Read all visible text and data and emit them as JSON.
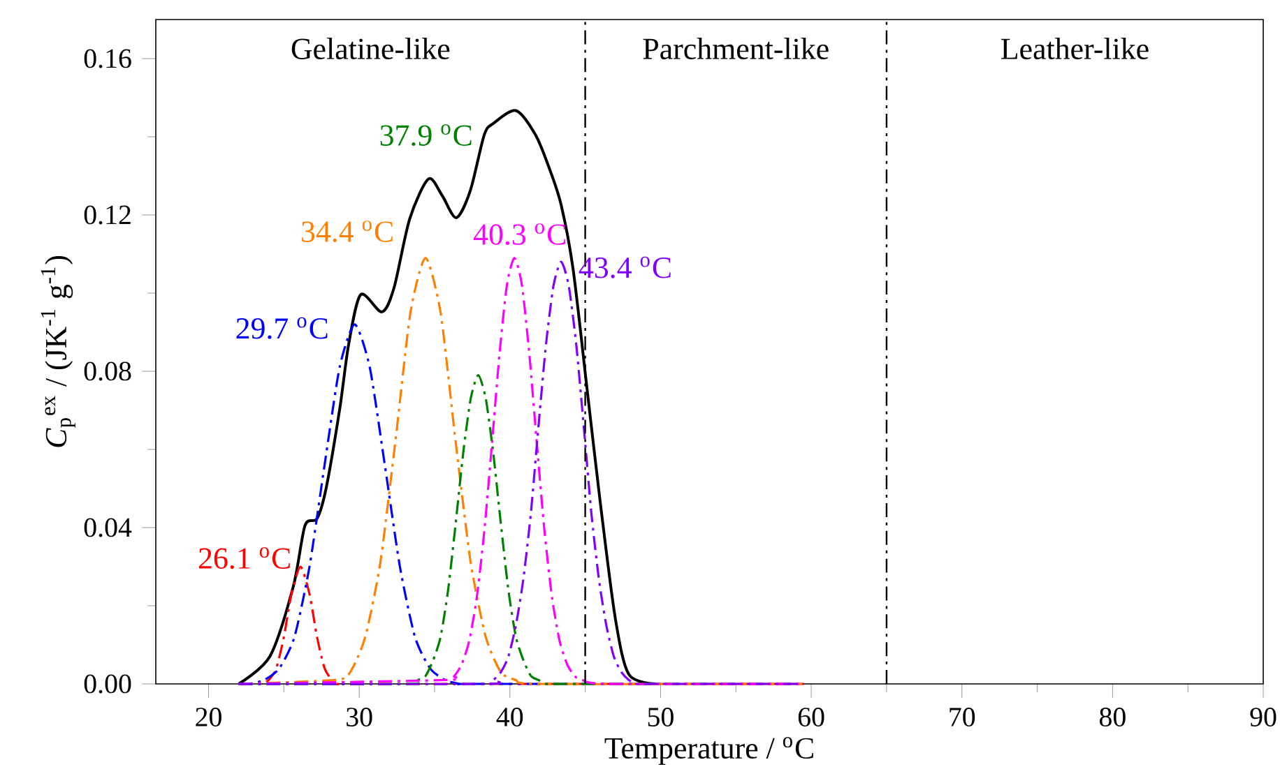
{
  "chart_data": {
    "type": "line",
    "xlabel": "Temperature / $^{o}$C",
    "ylabel": "*C*$_{p}$$^{ex}$ / (JK$^{-1}$ g$^{-1}$)",
    "xlim": [
      16.5,
      90
    ],
    "ylim": [
      0,
      0.17
    ],
    "xticks": [
      20,
      {
        "value": 25,
        "label": null
      },
      30,
      {
        "value": 35,
        "label": null
      },
      40,
      {
        "value": 45,
        "label": null
      },
      50,
      {
        "value": 55,
        "label": null
      },
      60,
      {
        "value": 65,
        "label": null
      },
      70,
      {
        "value": 75,
        "label": null
      },
      80,
      {
        "value": 85,
        "label": null
      },
      90
    ],
    "yticks": [
      {
        "value": 0,
        "label": "0.00"
      },
      {
        "value": 0.02,
        "label": null
      },
      {
        "value": 0.04,
        "label": "0.04"
      },
      {
        "value": 0.06,
        "label": null
      },
      {
        "value": 0.08,
        "label": "0.08"
      },
      {
        "value": 0.1,
        "label": null
      },
      {
        "value": 0.12,
        "label": "0.12"
      },
      {
        "value": 0.14,
        "label": null
      },
      {
        "value": 0.16,
        "label": "0.16"
      }
    ],
    "grid": false,
    "marker": "none",
    "series": [
      {
        "color": "#000000",
        "line_style": "solid",
        "x": [
          22,
          24.08,
          25.63,
          26.4,
          27.2,
          27.8,
          28.7,
          29.3,
          30.1,
          31.5,
          32.3,
          33.35,
          34.6,
          35.5,
          36.44,
          37.37,
          38.3,
          38.9,
          40.4,
          41.7,
          42.6,
          43.4,
          44.2,
          45.1,
          46.0,
          47.0,
          47.9,
          49.7
        ],
        "values": [
          0,
          0.0071,
          0.025,
          0.0405,
          0.0423,
          0.05,
          0.0702,
          0.0869,
          0.0996,
          0.0952,
          0.1012,
          0.119,
          0.1292,
          0.125,
          0.1193,
          0.1262,
          0.1405,
          0.1434,
          0.1467,
          0.1405,
          0.1321,
          0.1226,
          0.106,
          0.0762,
          0.0464,
          0.0167,
          0.0024,
          0
        ]
      },
      {
        "color": "#ff0000",
        "line_style": "dashdot",
        "x": [
          22,
          23.5,
          24,
          24.5,
          25,
          25.5,
          26.1,
          26.7,
          27.2,
          27.7,
          28.2,
          28.7,
          30,
          59.5
        ],
        "values": [
          0,
          0,
          0.001,
          0.004,
          0.012,
          0.023,
          0.03,
          0.023,
          0.012,
          0.004,
          0.001,
          0,
          0,
          0
        ]
      },
      {
        "color": "#0000ff",
        "line_style": "dashdot",
        "x": [
          22,
          22.7,
          23.7,
          24.7,
          25.7,
          26.7,
          27.7,
          28.7,
          29.7,
          30.7,
          31.7,
          32.7,
          33.7,
          34.7,
          35.7,
          36.7,
          38,
          59.5
        ],
        "values": [
          0,
          0,
          0.001,
          0.004,
          0.012,
          0.03,
          0.056,
          0.081,
          0.092,
          0.081,
          0.056,
          0.03,
          0.012,
          0.004,
          0.001,
          0,
          0,
          0
        ]
      },
      {
        "color": "#ff8000",
        "line_style": "dashdot",
        "x": [
          22,
          28.4,
          29.4,
          30.4,
          31.4,
          32.4,
          33.4,
          34.4,
          35.4,
          36.4,
          37.4,
          38.4,
          39.4,
          40.4,
          42,
          59.5
        ],
        "values": [
          0,
          0.001,
          0.003,
          0.012,
          0.031,
          0.062,
          0.095,
          0.109,
          0.095,
          0.062,
          0.031,
          0.012,
          0.003,
          0.001,
          0,
          0
        ]
      },
      {
        "color": "#008000",
        "line_style": "dashdot",
        "x": [
          22,
          33.4,
          33.9,
          34.4,
          34.9,
          35.4,
          35.9,
          36.4,
          36.9,
          37.4,
          37.9,
          38.4,
          38.9,
          39.4,
          39.9,
          40.4,
          40.9,
          41.4,
          41.9,
          42.4,
          44,
          59.5
        ],
        "values": [
          0,
          0,
          0.001,
          0.002,
          0.006,
          0.012,
          0.024,
          0.041,
          0.059,
          0.073,
          0.079,
          0.073,
          0.059,
          0.041,
          0.024,
          0.012,
          0.006,
          0.002,
          0.001,
          0,
          0,
          0
        ]
      },
      {
        "color": "#ff00ff",
        "line_style": "dashdot",
        "x": [
          22,
          35.8,
          36.3,
          36.8,
          37.3,
          37.8,
          38.3,
          38.8,
          39.3,
          39.8,
          40.3,
          40.8,
          41.3,
          41.8,
          42.3,
          42.8,
          43.3,
          43.8,
          44.3,
          44.8,
          46.5,
          59.5
        ],
        "values": [
          0,
          0.001,
          0.002,
          0.005,
          0.011,
          0.022,
          0.039,
          0.061,
          0.084,
          0.102,
          0.109,
          0.102,
          0.084,
          0.061,
          0.039,
          0.022,
          0.011,
          0.005,
          0.002,
          0.001,
          0,
          0
        ]
      },
      {
        "color": "#8000ff",
        "line_style": "dashdot",
        "x": [
          22,
          38.4,
          38.9,
          39.4,
          39.9,
          40.4,
          40.9,
          41.4,
          41.9,
          42.4,
          42.9,
          43.4,
          43.9,
          44.4,
          44.9,
          45.4,
          45.9,
          46.4,
          46.9,
          47.4,
          47.9,
          48.4,
          50,
          59.5
        ],
        "values": [
          0,
          0,
          0.001,
          0.003,
          0.007,
          0.015,
          0.027,
          0.044,
          0.066,
          0.087,
          0.102,
          0.108,
          0.102,
          0.087,
          0.066,
          0.044,
          0.027,
          0.015,
          0.007,
          0.003,
          0.001,
          0,
          0,
          0
        ]
      }
    ],
    "ref_lines": [
      {
        "axis": "x",
        "value": 45,
        "color": "#000000",
        "line_style": "dashdot"
      },
      {
        "axis": "x",
        "value": 65,
        "color": "#000000",
        "line_style": "dashdot"
      }
    ],
    "annotations": [
      "Gelatine-like",
      "Parchment-like",
      "Leather-like",
      {
        "text": "26.1 $^{o}$C",
        "x": 26.1,
        "y": 0.03
      },
      {
        "text": "29.7 $^{o}$C",
        "x": 29.7,
        "y": 0.0917
      },
      {
        "text": "34.4 $^{o}$C",
        "x": 34.4,
        "y": 0.1086
      },
      "37.9 $^{o}$C",
      {
        "text": "40.3 $^{o}$C",
        "x": 40.3,
        "y": 0.1086
      },
      {
        "text": "43.4 $^{o}$C",
        "x": 43.4,
        "y": 0.108
      }
    ]
  }
}
